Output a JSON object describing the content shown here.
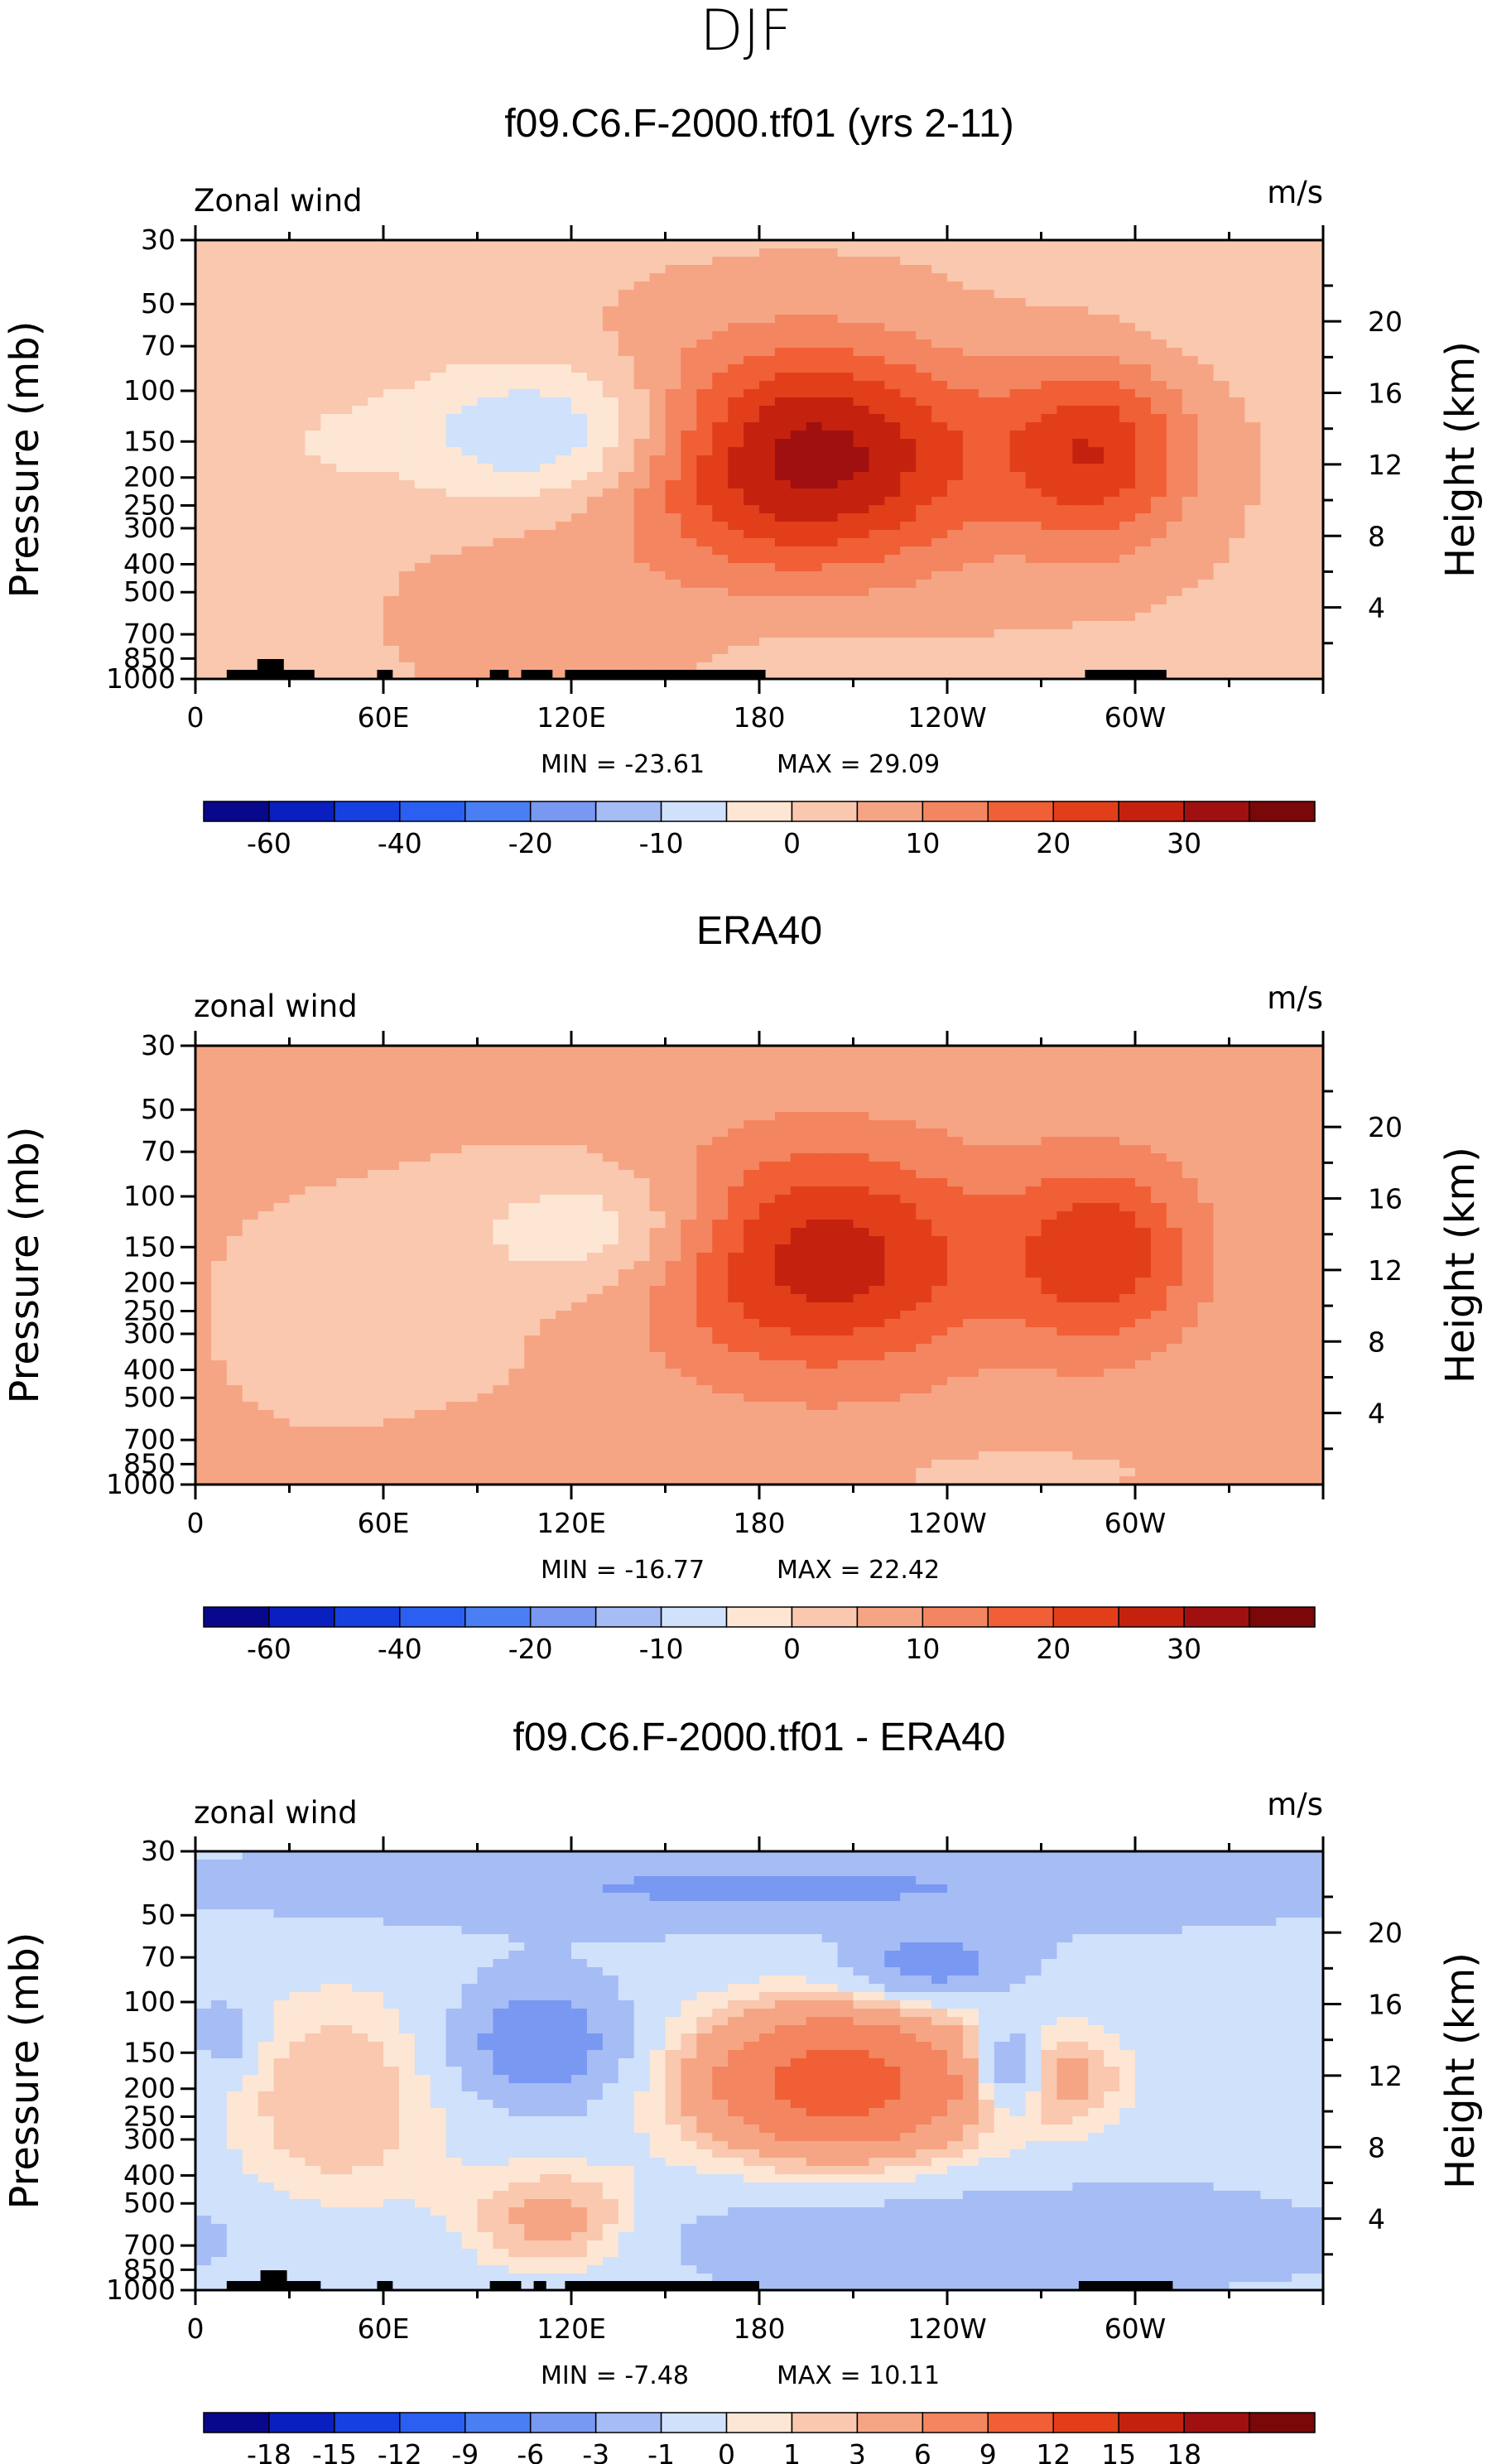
{
  "figure": {
    "season_title": "DJF",
    "colors": {
      "ramp": [
        "#08088c",
        "#0a1fbf",
        "#1640df",
        "#2b5ff2",
        "#4a7ef3",
        "#7898f2",
        "#a6bcf5",
        "#cfe1fb",
        "#fde6d4",
        "#f9c8ae",
        "#f6a584",
        "#f38560",
        "#f05f36",
        "#e33e1a",
        "#c4220f",
        "#a01010",
        "#7a0808"
      ],
      "topo": "#000000"
    }
  },
  "chart_data": [
    {
      "type": "heatmap",
      "title": "f09.C6.F-2000.tf01 (yrs 2-11)",
      "variable_label": "Zonal wind",
      "units": "m/s",
      "ylabel": "Pressure (mb)",
      "y2label": "Height (km)",
      "xticks": [
        "0",
        "60E",
        "120E",
        "180",
        "120W",
        "60W"
      ],
      "yticks": [
        "30",
        "50",
        "70",
        "100",
        "150",
        "200",
        "250",
        "300",
        "400",
        "500",
        "700",
        "850",
        "1000"
      ],
      "y2ticks": [
        "20",
        "16",
        "12",
        "8",
        "4"
      ],
      "min_text": "MIN = -23.61",
      "max_text": "MAX =  29.09",
      "min": -23.61,
      "max": 29.09,
      "colorbar_labels": [
        "-60",
        "-40",
        "-20",
        "-10",
        "0",
        "10",
        "20",
        "30"
      ],
      "features": [
        {
          "lon": 115,
          "p": 140,
          "lonR": 48,
          "pR": 0.55,
          "v": -16
        },
        {
          "lon": 195,
          "p": 170,
          "lonR": 58,
          "pR": 0.9,
          "v": 29
        },
        {
          "lon": 288,
          "p": 165,
          "lonR": 30,
          "pR": 0.75,
          "v": 19
        },
        {
          "lon": 108,
          "p": 620,
          "lonR": 40,
          "pR": 0.6,
          "v": 4
        },
        {
          "lon": 40,
          "p": 155,
          "lonR": 22,
          "pR": 0.5,
          "v": -3
        },
        {
          "lon": 330,
          "p": 60,
          "lonR": 80,
          "pR": 0.45,
          "v": -2
        },
        {
          "lon": 200,
          "p": 850,
          "lonR": 25,
          "pR": 0.2,
          "v": -3
        }
      ],
      "base": -1,
      "topography": [
        [
          10,
          38
        ],
        [
          58,
          63
        ],
        [
          94,
          100
        ],
        [
          104,
          114
        ],
        [
          118,
          182
        ],
        [
          284,
          310
        ]
      ]
    },
    {
      "type": "heatmap",
      "title": "ERA40",
      "variable_label": "zonal wind",
      "units": "m/s",
      "ylabel": "Pressure (mb)",
      "y2label": "Height (km)",
      "xticks": [
        "0",
        "60E",
        "120E",
        "180",
        "120W",
        "60W"
      ],
      "yticks": [
        "30",
        "50",
        "70",
        "100",
        "150",
        "200",
        "250",
        "300",
        "400",
        "500",
        "700",
        "850",
        "1000"
      ],
      "y2ticks": [
        "20",
        "16",
        "12",
        "8",
        "4"
      ],
      "min_text": "MIN = -16.77",
      "max_text": "MAX =  22.42",
      "min": -16.77,
      "max": 22.42,
      "colorbar_labels": [
        "-60",
        "-40",
        "-20",
        "-10",
        "0",
        "10",
        "20",
        "30"
      ],
      "features": [
        {
          "lon": 130,
          "p": 130,
          "lonR": 40,
          "pR": 0.5,
          "v": -11
        },
        {
          "lon": 60,
          "p": 250,
          "lonR": 55,
          "pR": 1.0,
          "v": -3
        },
        {
          "lon": 200,
          "p": 165,
          "lonR": 55,
          "pR": 0.9,
          "v": 22
        },
        {
          "lon": 290,
          "p": 160,
          "lonR": 30,
          "pR": 0.75,
          "v": 17
        },
        {
          "lon": 110,
          "p": 750,
          "lonR": 40,
          "pR": 0.3,
          "v": 3
        },
        {
          "lon": 260,
          "p": 900,
          "lonR": 50,
          "pR": 0.25,
          "v": -2
        }
      ],
      "base": 1,
      "topography": []
    },
    {
      "type": "heatmap",
      "title": "f09.C6.F-2000.tf01 - ERA40",
      "variable_label": "zonal wind",
      "units": "m/s",
      "ylabel": "Pressure (mb)",
      "y2label": "Height (km)",
      "xticks": [
        "0",
        "60E",
        "120E",
        "180",
        "120W",
        "60W"
      ],
      "yticks": [
        "30",
        "50",
        "70",
        "100",
        "150",
        "200",
        "250",
        "300",
        "400",
        "500",
        "700",
        "850",
        "1000"
      ],
      "y2ticks": [
        "20",
        "16",
        "12",
        "8",
        "4"
      ],
      "min_text": "MIN =  -7.48",
      "max_text": "MAX =  10.11",
      "min": -7.48,
      "max": 10.11,
      "colorbar_labels": [
        "-18",
        "-15",
        "-12",
        "-9",
        "-6",
        "-3",
        "-1",
        "0",
        "1",
        "3",
        "6",
        "9",
        "12",
        "15",
        "18"
      ],
      "features": [
        {
          "lon": 205,
          "p": 190,
          "lonR": 50,
          "pR": 0.65,
          "v": 10
        },
        {
          "lon": 110,
          "p": 140,
          "lonR": 25,
          "pR": 0.45,
          "v": -7
        },
        {
          "lon": 280,
          "p": 185,
          "lonR": 22,
          "pR": 0.45,
          "v": 3
        },
        {
          "lon": 45,
          "p": 220,
          "lonR": 40,
          "pR": 1.0,
          "v": 3.5
        },
        {
          "lon": 115,
          "p": 580,
          "lonR": 30,
          "pR": 0.45,
          "v": 4.5
        },
        {
          "lon": 185,
          "p": 40,
          "lonR": 150,
          "pR": 0.3,
          "v": -4
        },
        {
          "lon": 235,
          "p": 75,
          "lonR": 25,
          "pR": 0.25,
          "v": -6
        },
        {
          "lon": 260,
          "p": 170,
          "lonR": 10,
          "pR": 0.35,
          "v": -6
        },
        {
          "lon": 255,
          "p": 650,
          "lonR": 110,
          "pR": 0.35,
          "v": -3
        },
        {
          "lon": 10,
          "p": 130,
          "lonR": 10,
          "pR": 0.3,
          "v": -3
        }
      ],
      "base": -2.5,
      "topography": [
        [
          10,
          40
        ],
        [
          58,
          63
        ],
        [
          94,
          104
        ],
        [
          108,
          112
        ],
        [
          118,
          180
        ],
        [
          282,
          312
        ]
      ]
    }
  ]
}
